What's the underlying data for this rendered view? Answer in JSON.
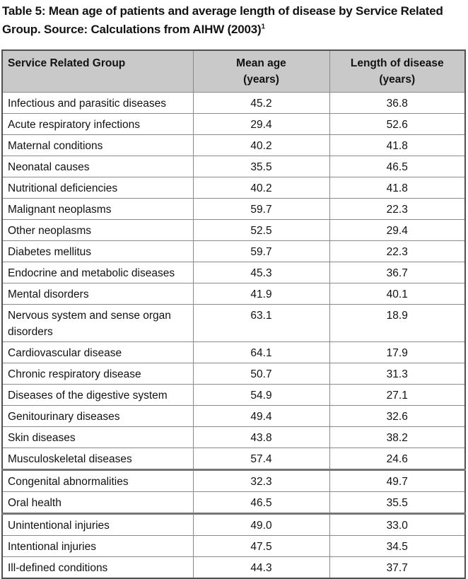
{
  "caption": {
    "text": "Table 5: Mean age of patients and average length of disease by Service Related Group. Source: Calculations from AIHW (2003)",
    "footnote_marker": "1"
  },
  "table": {
    "columns": [
      {
        "label": "Service Related Group",
        "sub": ""
      },
      {
        "label": "Mean age",
        "sub": "(years)"
      },
      {
        "label": "Length of disease",
        "sub": "(years)"
      }
    ],
    "rows": [
      {
        "group": "Infectious and parasitic diseases",
        "mean_age": "45.2",
        "length_of_disease": "36.8"
      },
      {
        "group": "Acute respiratory infections",
        "mean_age": "29.4",
        "length_of_disease": "52.6"
      },
      {
        "group": "Maternal conditions",
        "mean_age": "40.2",
        "length_of_disease": "41.8"
      },
      {
        "group": "Neonatal causes",
        "mean_age": "35.5",
        "length_of_disease": "46.5"
      },
      {
        "group": "Nutritional deficiencies",
        "mean_age": "40.2",
        "length_of_disease": "41.8"
      },
      {
        "group": "Malignant neoplasms",
        "mean_age": "59.7",
        "length_of_disease": "22.3"
      },
      {
        "group": "Other neoplasms",
        "mean_age": "52.5",
        "length_of_disease": "29.4"
      },
      {
        "group": "Diabetes mellitus",
        "mean_age": "59.7",
        "length_of_disease": "22.3"
      },
      {
        "group": "Endocrine and metabolic diseases",
        "mean_age": "45.3",
        "length_of_disease": "36.7"
      },
      {
        "group": "Mental disorders",
        "mean_age": "41.9",
        "length_of_disease": "40.1"
      },
      {
        "group": "Nervous system and sense organ disorders",
        "mean_age": "63.1",
        "length_of_disease": "18.9"
      },
      {
        "group": "Cardiovascular disease",
        "mean_age": "64.1",
        "length_of_disease": "17.9"
      },
      {
        "group": "Chronic respiratory disease",
        "mean_age": "50.7",
        "length_of_disease": "31.3"
      },
      {
        "group": "Diseases of the digestive system",
        "mean_age": "54.9",
        "length_of_disease": "27.1"
      },
      {
        "group": "Genitourinary diseases",
        "mean_age": "49.4",
        "length_of_disease": "32.6"
      },
      {
        "group": "Skin diseases",
        "mean_age": "43.8",
        "length_of_disease": "38.2"
      },
      {
        "group": "Musculoskeletal diseases",
        "mean_age": "57.4",
        "length_of_disease": "24.6"
      },
      {
        "group": "Congenital abnormalities",
        "mean_age": "32.3",
        "length_of_disease": "49.7"
      },
      {
        "group": "Oral health",
        "mean_age": "46.5",
        "length_of_disease": "35.5"
      },
      {
        "group": "Unintentional injuries",
        "mean_age": "49.0",
        "length_of_disease": "33.0"
      },
      {
        "group": "Intentional injuries",
        "mean_age": "47.5",
        "length_of_disease": "34.5"
      },
      {
        "group": "Ill-defined conditions",
        "mean_age": "44.3",
        "length_of_disease": "37.7"
      }
    ]
  },
  "colors": {
    "header_bg": "#c9c9c9",
    "border_inner": "#8a8a8a",
    "border_outer": "#4f4f4f",
    "text_color": "#121212",
    "page_bg": "#ffffff"
  }
}
